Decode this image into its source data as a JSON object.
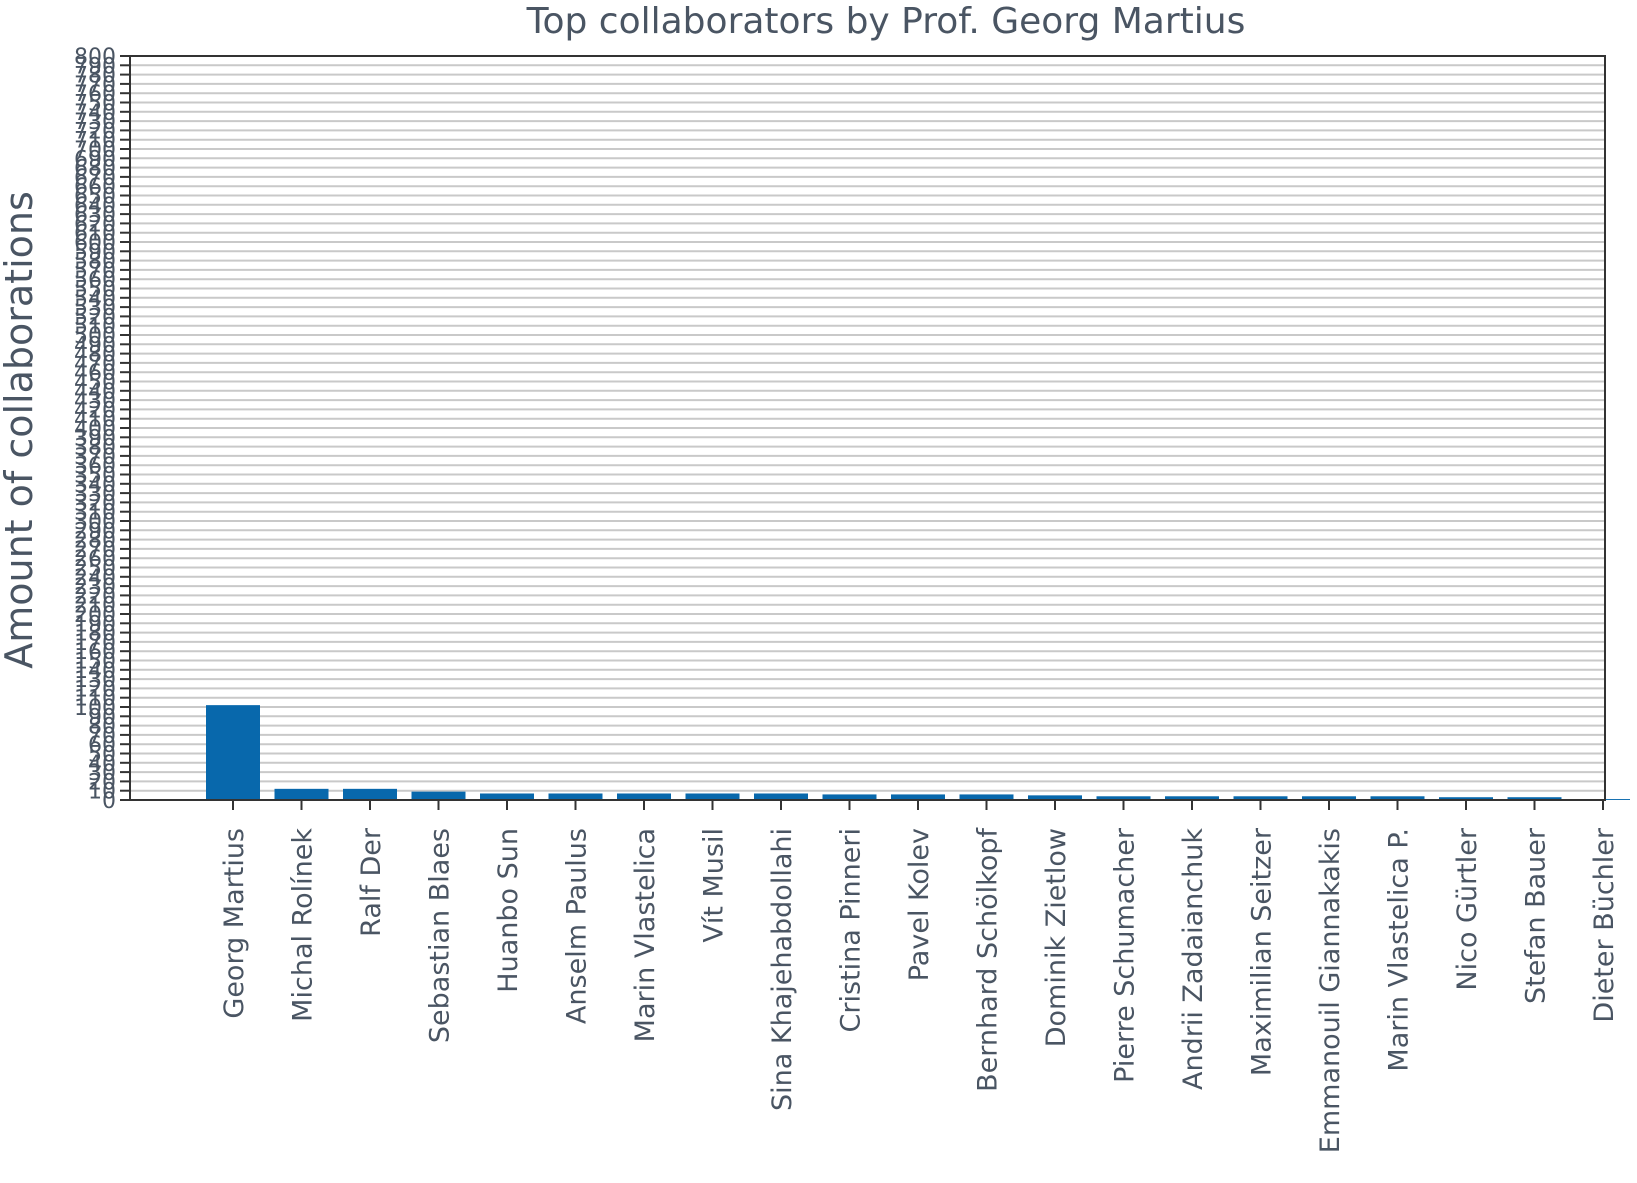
{
  "colors": {
    "bar": "#0868ac",
    "grid": "#c9c9c9",
    "text": "#4a5563",
    "axis": "#333333"
  },
  "chart_data": {
    "type": "bar",
    "title": "Top collaborators by Prof. Georg Martius",
    "xlabel": "",
    "ylabel": "Amount of collaborations",
    "ylim": [
      0,
      800
    ],
    "ytick_step": 10,
    "grid": true,
    "categories": [
      "Georg Martius",
      "Michal Rolínek",
      "Ralf Der",
      "Sebastian Blaes",
      "Huanbo Sun",
      "Anselm Paulus",
      "Marin Vlastelica",
      "Vít Musil",
      "Sina Khajehabdollahi",
      "Cristina Pinneri",
      "Pavel Kolev",
      "Bernhard Schölkopf",
      "Dominik Zietlow",
      "Pierre Schumacher",
      "Andrii Zadaianchuk",
      "Maximilian Seitzer",
      "Emmanouil Giannakakis",
      "Marin Vlastelica P.",
      "Nico Gürtler",
      "Stefan Bauer",
      "Dieter Büchler"
    ],
    "values": [
      102,
      12,
      12,
      9,
      7,
      7,
      7,
      7,
      7,
      6,
      6,
      6,
      5,
      4,
      4,
      4,
      4,
      4,
      3,
      3,
      1
    ]
  }
}
